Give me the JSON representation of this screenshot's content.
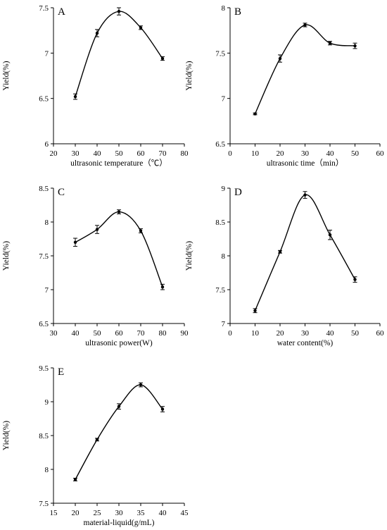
{
  "chart_data": [
    {
      "type": "line",
      "panel_label": "A",
      "xlabel": "ultrasonic temperature（℃）",
      "ylabel": "Yield(%)",
      "xlim": [
        20,
        80
      ],
      "xticks": [
        20,
        30,
        40,
        50,
        60,
        70,
        80
      ],
      "ylim": [
        6,
        7.5
      ],
      "yticks": [
        6,
        6.5,
        7,
        7.5
      ],
      "x": [
        30,
        40,
        50,
        60,
        70
      ],
      "y": [
        6.52,
        7.22,
        7.46,
        7.28,
        6.94
      ],
      "err": [
        0.03,
        0.04,
        0.04,
        0.02,
        0.02
      ],
      "grid": false,
      "legend": "none"
    },
    {
      "type": "line",
      "panel_label": "B",
      "xlabel": "ultrasonic time（min）",
      "ylabel": "Yield(%)",
      "xlim": [
        0,
        60
      ],
      "xticks": [
        0,
        10,
        20,
        30,
        40,
        50,
        60
      ],
      "ylim": [
        6.5,
        8
      ],
      "yticks": [
        6.5,
        7,
        7.5,
        8
      ],
      "x": [
        10,
        20,
        30,
        40,
        50
      ],
      "y": [
        6.83,
        7.44,
        7.81,
        7.61,
        7.58
      ],
      "err": [
        0.01,
        0.04,
        0.02,
        0.02,
        0.03
      ],
      "grid": false,
      "legend": "none"
    },
    {
      "type": "line",
      "panel_label": "C",
      "xlabel": "ultrasonic power(W)",
      "ylabel": "Yield(%)",
      "xlim": [
        30,
        90
      ],
      "xticks": [
        30,
        40,
        50,
        60,
        70,
        80,
        90
      ],
      "ylim": [
        6.5,
        8.5
      ],
      "yticks": [
        6.5,
        7,
        7.5,
        8,
        8.5
      ],
      "x": [
        40,
        50,
        60,
        70,
        80
      ],
      "y": [
        7.7,
        7.89,
        8.15,
        7.87,
        7.04
      ],
      "err": [
        0.06,
        0.06,
        0.03,
        0.03,
        0.04
      ],
      "grid": false,
      "legend": "none"
    },
    {
      "type": "line",
      "panel_label": "D",
      "xlabel": "water content(%)",
      "ylabel": "Yield(%)",
      "xlim": [
        0,
        60
      ],
      "xticks": [
        0,
        10,
        20,
        30,
        40,
        50,
        60
      ],
      "ylim": [
        7,
        9
      ],
      "yticks": [
        7,
        7.5,
        8,
        8.5,
        9
      ],
      "x": [
        10,
        20,
        30,
        40,
        50
      ],
      "y": [
        7.19,
        8.06,
        8.9,
        8.31,
        7.65
      ],
      "err": [
        0.03,
        0.02,
        0.05,
        0.07,
        0.04
      ],
      "grid": false,
      "legend": "none"
    },
    {
      "type": "line",
      "panel_label": "E",
      "xlabel": "material-liquid(g/mL)",
      "ylabel": "Yield(%)",
      "xlim": [
        15,
        45
      ],
      "xticks": [
        15,
        20,
        25,
        30,
        35,
        40,
        45
      ],
      "ylim": [
        7.5,
        9.5
      ],
      "yticks": [
        7.5,
        8,
        8.5,
        9,
        9.5
      ],
      "x": [
        20,
        25,
        30,
        35,
        40
      ],
      "y": [
        7.85,
        8.44,
        8.93,
        9.25,
        8.89
      ],
      "err": [
        0.02,
        0.02,
        0.04,
        0.03,
        0.04
      ],
      "grid": false,
      "legend": "none"
    }
  ]
}
